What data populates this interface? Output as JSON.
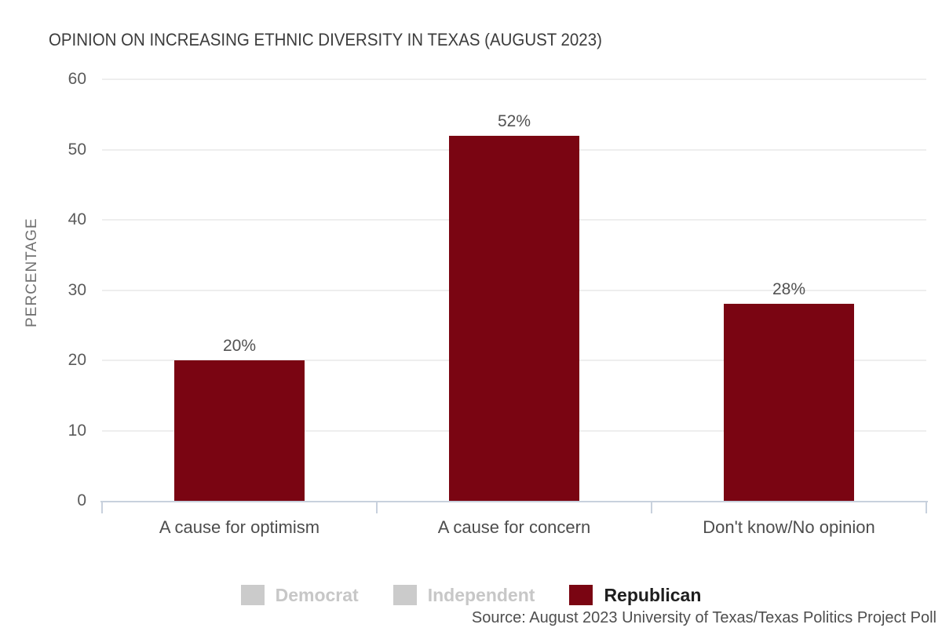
{
  "title": "OPINION ON INCREASING ETHNIC DIVERSITY IN TEXAS (AUGUST 2023)",
  "source_note": "Source: August 2023 University of Texas/Texas Politics Project Poll",
  "colors": {
    "bar": "#7a0512",
    "legend_muted_swatch": "#cbcbcb",
    "legend_muted_text": "#c7c7c7",
    "axis_line": "#c8d1dd",
    "gridline": "#eeeeee",
    "title_text": "#3c3c3c",
    "tick_text": "#5a5a5a"
  },
  "chart_data": {
    "type": "bar",
    "title": "OPINION ON INCREASING ETHNIC DIVERSITY IN TEXAS (AUGUST 2023)",
    "categories": [
      "A cause for optimism",
      "A cause for concern",
      "Don't know/No opinion"
    ],
    "series": [
      {
        "name": "Democrat",
        "visible": false,
        "values": []
      },
      {
        "name": "Independent",
        "visible": false,
        "values": []
      },
      {
        "name": "Republican",
        "visible": true,
        "values": [
          20,
          52,
          28
        ]
      }
    ],
    "value_labels": [
      "20%",
      "52%",
      "28%"
    ],
    "xlabel": "",
    "ylabel": "PERCENTAGE",
    "yticks": [
      0,
      10,
      20,
      30,
      40,
      50,
      60
    ],
    "ylim": [
      0,
      60
    ],
    "grid": true,
    "legend_position": "bottom",
    "annotation": "Source: August 2023 University of Texas/Texas Politics Project Poll"
  }
}
